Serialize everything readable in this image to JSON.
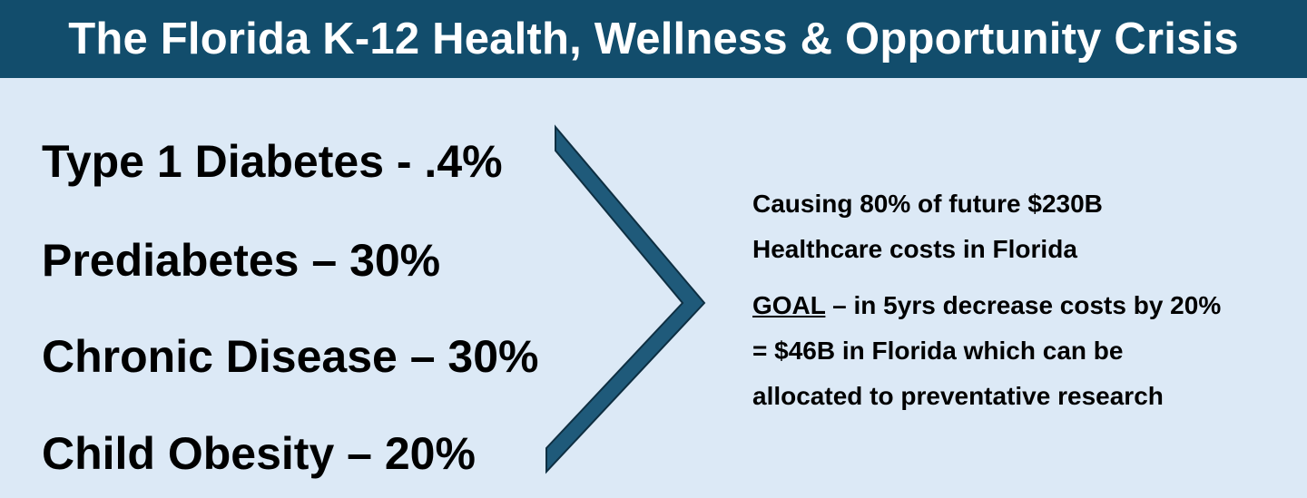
{
  "title": "The Florida K-12 Health, Wellness & Opportunity Crisis",
  "stats": [
    "Type 1 Diabetes - .4%",
    "Prediabetes – 30%",
    "Chronic Disease – 30%",
    "Child Obesity – 20%"
  ],
  "cost_line_1": "Causing 80% of future $230B",
  "cost_line_2": "Healthcare costs in Florida",
  "goal_label": "GOAL",
  "goal_line_1_rest": " – in 5yrs decrease costs by 20%",
  "goal_line_2": "= $46B in Florida which can be",
  "goal_line_3": "allocated to preventative research",
  "colors": {
    "title_bar": "#124d6c",
    "background": "#dce9f6",
    "chevron": "#1f5a7a"
  }
}
